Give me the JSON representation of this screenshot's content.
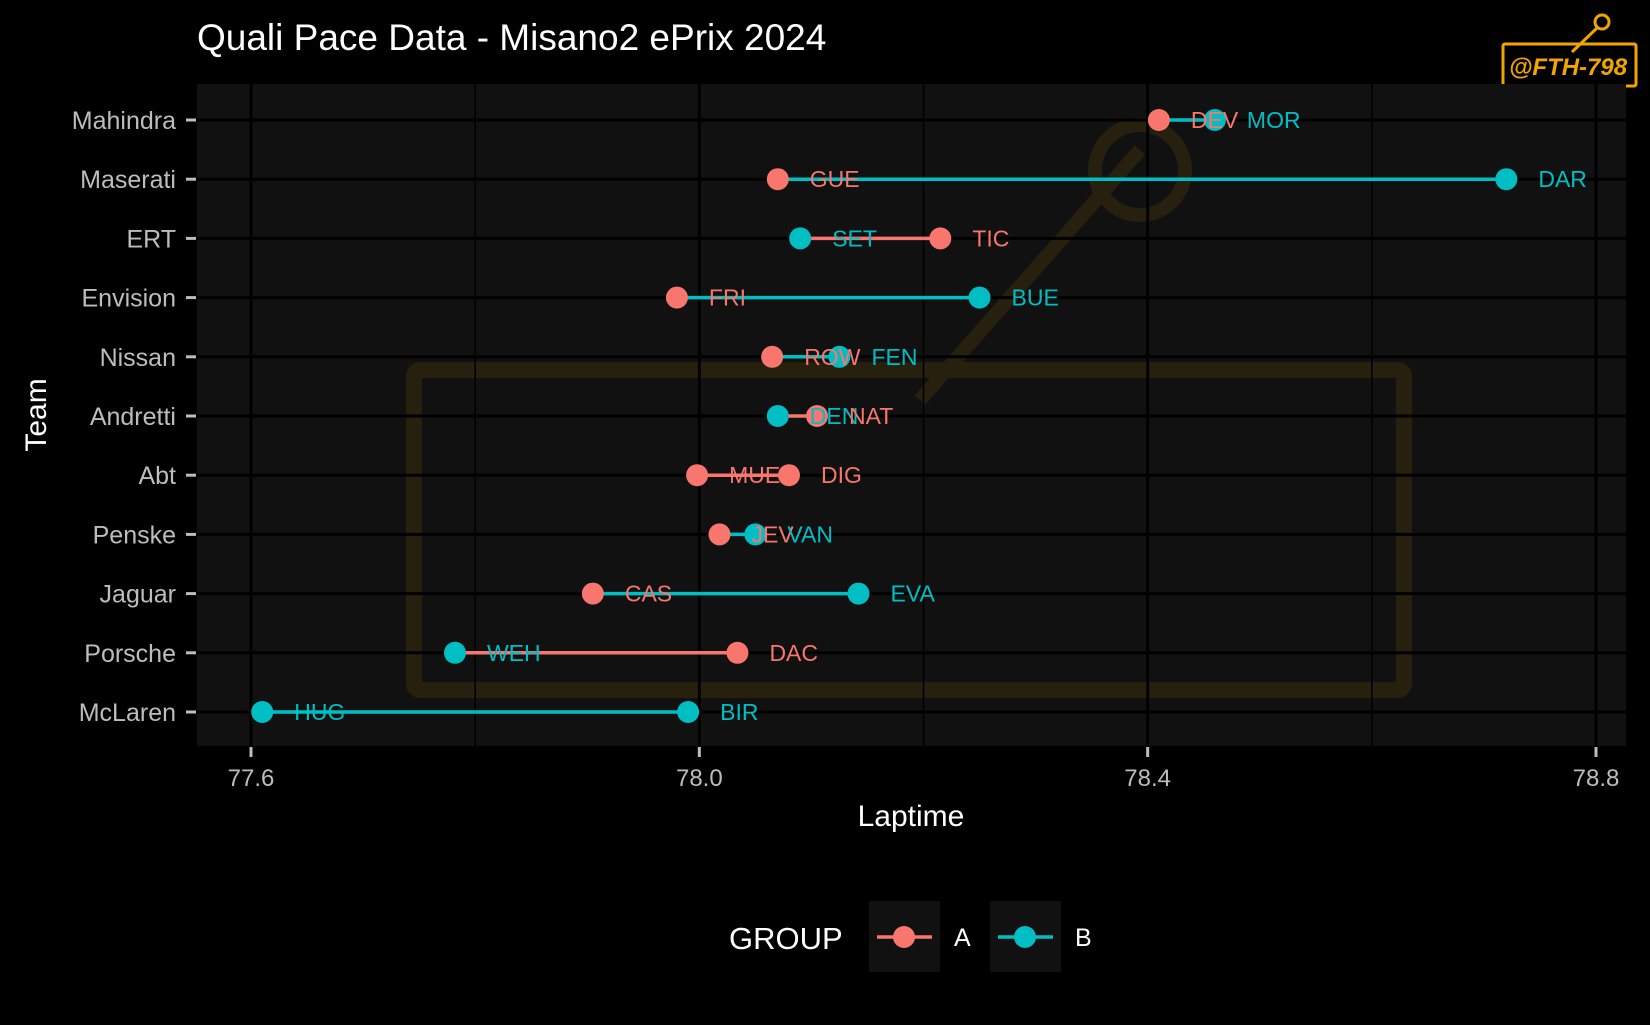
{
  "chart_data": {
    "type": "dumbbell",
    "title": "Quali Pace Data - Misano2 ePrix 2024",
    "xlabel": "Laptime",
    "ylabel": "Team",
    "xlim": [
      77.55,
      78.82
    ],
    "xticks": [
      77.6,
      78.0,
      78.4,
      78.8
    ],
    "xtick_labels": [
      "77.6",
      "78.0",
      "78.4",
      "78.8"
    ],
    "grid": true,
    "legend": {
      "title": "GROUP",
      "position": "bottom",
      "entries": [
        {
          "name": "A",
          "color": "#F8766D"
        },
        {
          "name": "B",
          "color": "#00BFC4"
        }
      ]
    },
    "colors": {
      "A": "#F8766D",
      "B": "#00BFC4"
    },
    "teams": [
      {
        "team": "Mahindra",
        "drivers": [
          {
            "code": "DEV",
            "group": "A",
            "laptime": 78.41
          },
          {
            "code": "MOR",
            "group": "B",
            "laptime": 78.46
          }
        ]
      },
      {
        "team": "Maserati",
        "drivers": [
          {
            "code": "GUE",
            "group": "A",
            "laptime": 78.07
          },
          {
            "code": "DAR",
            "group": "B",
            "laptime": 78.72
          }
        ]
      },
      {
        "team": "ERT",
        "drivers": [
          {
            "code": "SET",
            "group": "B",
            "laptime": 78.09
          },
          {
            "code": "TIC",
            "group": "A",
            "laptime": 78.215
          }
        ]
      },
      {
        "team": "Envision",
        "drivers": [
          {
            "code": "FRI",
            "group": "A",
            "laptime": 77.98
          },
          {
            "code": "BUE",
            "group": "B",
            "laptime": 78.25
          }
        ]
      },
      {
        "team": "Nissan",
        "drivers": [
          {
            "code": "ROW",
            "group": "A",
            "laptime": 78.065
          },
          {
            "code": "FEN",
            "group": "B",
            "laptime": 78.125
          }
        ]
      },
      {
        "team": "Andretti",
        "drivers": [
          {
            "code": "DEN",
            "group": "B",
            "laptime": 78.07
          },
          {
            "code": "NAT",
            "group": "A",
            "laptime": 78.105
          }
        ]
      },
      {
        "team": "Abt",
        "drivers": [
          {
            "code": "MUE",
            "group": "A",
            "laptime": 77.998
          },
          {
            "code": "DIG",
            "group": "A",
            "laptime": 78.08
          }
        ]
      },
      {
        "team": "Penske",
        "drivers": [
          {
            "code": "JEV",
            "group": "A",
            "laptime": 78.018
          },
          {
            "code": "VAN",
            "group": "B",
            "laptime": 78.05
          }
        ]
      },
      {
        "team": "Jaguar",
        "drivers": [
          {
            "code": "CAS",
            "group": "A",
            "laptime": 77.905
          },
          {
            "code": "EVA",
            "group": "B",
            "laptime": 78.142
          }
        ]
      },
      {
        "team": "Porsche",
        "drivers": [
          {
            "code": "WEH",
            "group": "B",
            "laptime": 77.782
          },
          {
            "code": "DAC",
            "group": "A",
            "laptime": 78.034
          }
        ]
      },
      {
        "team": "McLaren",
        "drivers": [
          {
            "code": "HUG",
            "group": "B",
            "laptime": 77.61
          },
          {
            "code": "BIR",
            "group": "B",
            "laptime": 77.99
          }
        ]
      }
    ]
  },
  "watermark": {
    "text": "@FTH-798",
    "color": "#f0a500"
  }
}
